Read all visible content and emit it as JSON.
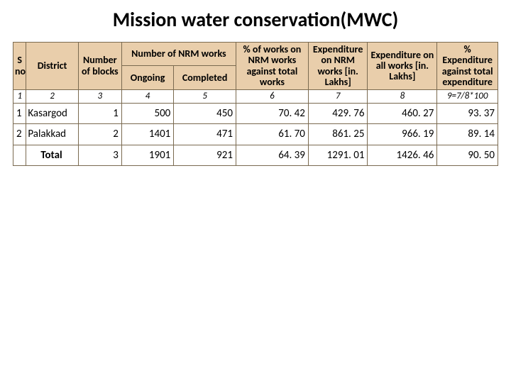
{
  "title": "Mission water conservation(MWC)",
  "table": {
    "type": "table",
    "header_bg": "#e9ceab",
    "border_color": "#7a6a50",
    "background_color": "#ffffff",
    "columns": {
      "sno": "S no.",
      "district": "District",
      "blocks": "Number of blocks",
      "nrm_group": "Number of NRM works",
      "ongoing": "Ongoing",
      "completed": "Completed",
      "pct_nrm": "% of works on NRM works against total works",
      "exp_nrm": "Expenditure on NRM works [in. Lakhs]",
      "exp_all": "Expenditure on all works [in. Lakhs]",
      "pct_exp": "% Expenditure against total expenditure"
    },
    "formula_row": [
      "1",
      "2",
      "3",
      "4",
      "5",
      "6",
      "7",
      "8",
      "9=7/8*100"
    ],
    "rows": [
      {
        "sno": "1",
        "district": "Kasargod",
        "blocks": "1",
        "ongoing": "500",
        "completed": "450",
        "pct_nrm": "70. 42",
        "exp_nrm": "429. 76",
        "exp_all": "460. 27",
        "pct_exp": "93. 37"
      },
      {
        "sno": "2",
        "district": "Palakkad",
        "blocks": "2",
        "ongoing": "1401",
        "completed": "471",
        "pct_nrm": "61. 70",
        "exp_nrm": "861. 25",
        "exp_all": "966. 19",
        "pct_exp": "89. 14"
      },
      {
        "sno": "",
        "district": "Total",
        "blocks": "3",
        "ongoing": "1901",
        "completed": "921",
        "pct_nrm": "64. 39",
        "exp_nrm": "1291. 01",
        "exp_all": "1426. 46",
        "pct_exp": "90. 50",
        "is_total": true
      }
    ]
  }
}
